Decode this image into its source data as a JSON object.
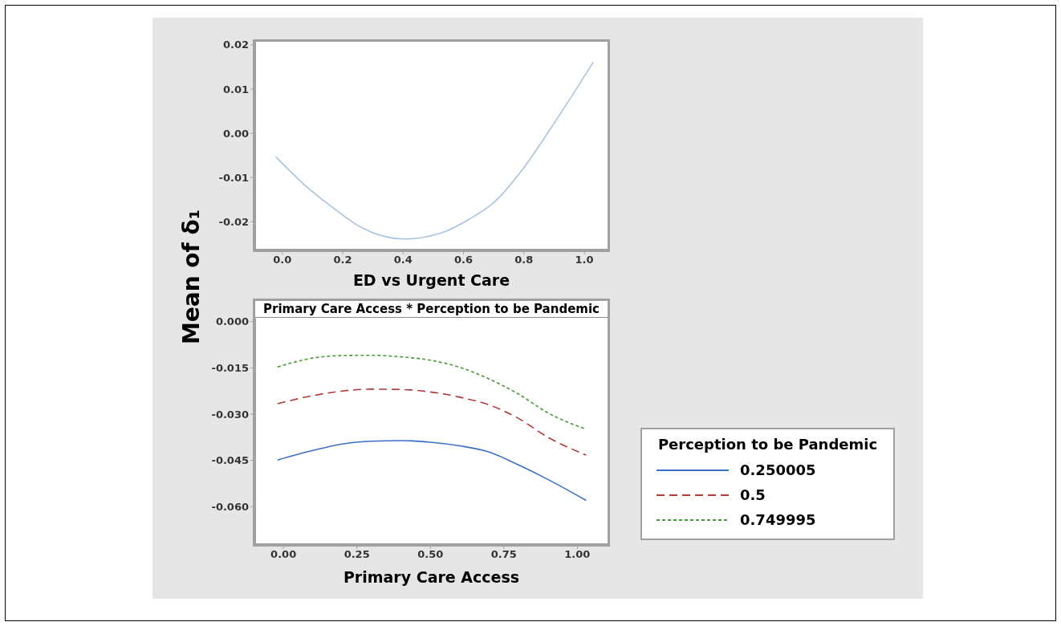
{
  "chart_data": [
    {
      "type": "line",
      "ylabel": "Mean of δ₁",
      "xlabel": "ED vs Urgent Care",
      "xlim": [
        -0.09,
        1.077
      ],
      "xticks": [
        {
          "value": 0,
          "label": "0.0"
        },
        0.2,
        0.4,
        0.6,
        0.8,
        {
          "value": 1,
          "label": "1.0"
        }
      ],
      "ylim": [
        -0.0263,
        0.0207
      ],
      "yticks": [
        -0.02,
        -0.01,
        {
          "value": 0,
          "label": "0.00"
        },
        0.01,
        0.02
      ],
      "marker": "none",
      "series": [
        {
          "color": "#a9c4e0",
          "line_style": "solid",
          "x": [
            -0.022,
            0.084,
            0.173,
            0.262,
            0.404,
            0.528,
            0.617,
            0.706,
            0.795,
            0.883,
            1.03
          ],
          "values": [
            -0.0053,
            -0.0123,
            -0.0171,
            -0.0213,
            -0.0239,
            -0.0225,
            -0.0195,
            -0.0153,
            -0.0082,
            0.0005,
            0.0161
          ]
        }
      ]
    },
    {
      "type": "line",
      "title": "Primary Care Access * Perception to be Pandemic",
      "xlabel": "Primary Care Access",
      "legend_title": "Perception to be Pandemic",
      "xlim": [
        -0.096,
        1.103
      ],
      "xticks": [
        {
          "value": 0,
          "label": "0.00"
        },
        0.25,
        {
          "value": 0.5,
          "label": "0.50"
        },
        0.75,
        {
          "value": 1,
          "label": "1.00"
        }
      ],
      "ylim": [
        -0.0722,
        0.001
      ],
      "yticks": [
        {
          "value": -0.06,
          "label": "-0.060"
        },
        -0.045,
        {
          "value": -0.03,
          "label": "-0.030"
        },
        -0.015,
        {
          "value": 0,
          "label": "0.000"
        }
      ],
      "legend": "right",
      "marker": "none",
      "series": [
        {
          "name": "0.250005",
          "color": "#3b6fc4",
          "line_style": "solid",
          "x": [
            -0.02,
            0.1,
            0.2,
            0.3,
            0.4,
            0.5,
            0.6,
            0.7,
            0.8,
            0.9,
            1.03
          ],
          "values": [
            -0.0449,
            -0.0418,
            -0.0397,
            -0.0388,
            -0.0386,
            -0.0391,
            -0.0403,
            -0.0423,
            -0.0465,
            -0.0512,
            -0.058
          ]
        },
        {
          "name": "0.5",
          "color": "#b03a3a",
          "line_style": "dashed",
          "x": [
            -0.02,
            0.1,
            0.2,
            0.3,
            0.4,
            0.5,
            0.6,
            0.7,
            0.8,
            0.9,
            1.03
          ],
          "values": [
            -0.0266,
            -0.024,
            -0.0225,
            -0.0219,
            -0.022,
            -0.0228,
            -0.0245,
            -0.027,
            -0.0314,
            -0.0375,
            -0.0433
          ]
        },
        {
          "name": "0.749995",
          "color": "#4a9a3a",
          "line_style": "dotted",
          "x": [
            -0.02,
            0.1,
            0.2,
            0.3,
            0.4,
            0.5,
            0.6,
            0.7,
            0.8,
            0.9,
            1.03
          ],
          "values": [
            -0.0147,
            -0.0118,
            -0.011,
            -0.0109,
            -0.0114,
            -0.0125,
            -0.0148,
            -0.0186,
            -0.0235,
            -0.0296,
            -0.0349
          ]
        }
      ]
    }
  ]
}
